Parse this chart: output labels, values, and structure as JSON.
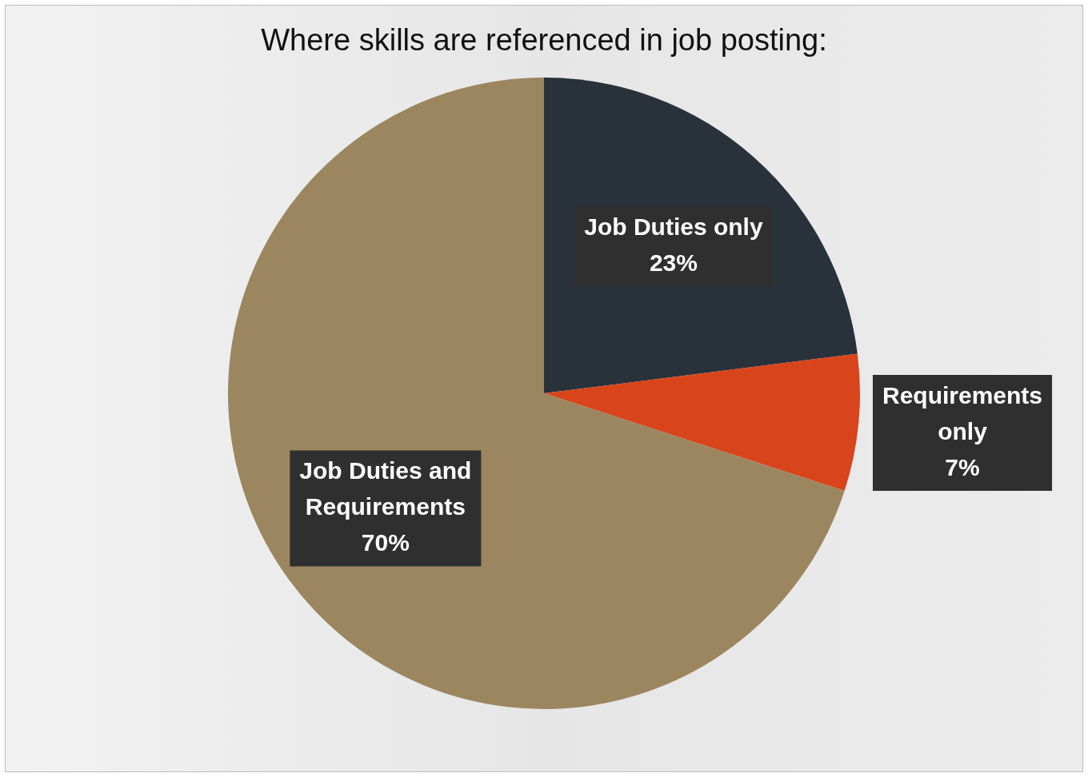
{
  "chart_data": {
    "type": "pie",
    "title": "Where skills are referenced in job posting:",
    "categories": [
      "Job Duties only",
      "Requirements only",
      "Job Duties and Requirements"
    ],
    "values": [
      23,
      7,
      70
    ],
    "colors": [
      "#29313b",
      "#d8441b",
      "#9c8660"
    ],
    "value_labels": [
      "23%",
      "7%",
      "70%"
    ],
    "legend": false
  }
}
